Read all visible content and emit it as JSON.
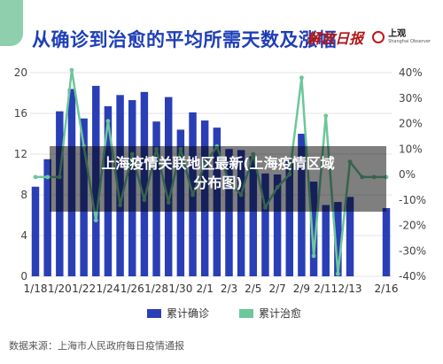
{
  "header": {
    "title": "从确诊到治愈的平均所需天数及涨幅",
    "logo_left": "解放日报",
    "logo_right": "上观",
    "logo_right_sub": "Shanghai Observer"
  },
  "overlay": {
    "line1": "上海疫情关联地区最新(上海疫情区域",
    "line2": "分布图)"
  },
  "source": "数据来源：上海市人民政府每日疫情通报",
  "colors": {
    "bar": "#2a3fb5",
    "line": "#6cc79a",
    "title": "#1f3fb8",
    "grid": "#e3e3e3"
  },
  "chart_data": {
    "type": "bar",
    "x_tick_labels": [
      "1/18",
      "1/20",
      "1/22",
      "1/24",
      "1/26",
      "1/28",
      "1/30",
      "2/1",
      "2/3",
      "2/5",
      "2/7",
      "2/9",
      "2/11",
      "2/13",
      "2/16"
    ],
    "dates": [
      "1/18",
      "1/19",
      "1/20",
      "1/21",
      "1/22",
      "1/23",
      "1/24",
      "1/25",
      "1/26",
      "1/27",
      "1/28",
      "1/29",
      "1/30",
      "1/31",
      "2/1",
      "2/2",
      "2/3",
      "2/4",
      "2/5",
      "2/6",
      "2/7",
      "2/8",
      "2/9",
      "2/10",
      "2/11",
      "2/12",
      "2/13",
      "2/14",
      "2/15",
      "2/16"
    ],
    "y_left": {
      "min": 0,
      "max": 20,
      "ticks": [
        0,
        4,
        8,
        12,
        16,
        20
      ]
    },
    "y_right": {
      "min": -40,
      "max": 40,
      "ticks": [
        "40%",
        "30%",
        "20%",
        "10%",
        "0%",
        "-10%",
        "-20%",
        "-30%",
        "-40%"
      ]
    },
    "grid": true,
    "legend_position": "bottom",
    "series": [
      {
        "name": "累计确诊",
        "type": "bar",
        "axis": "left",
        "values": [
          8.8,
          11.5,
          16.2,
          18.4,
          15.5,
          18.7,
          16.7,
          17.8,
          17.3,
          18.1,
          15.2,
          17.6,
          14.4,
          16.1,
          15.3,
          14.6,
          12.5,
          12.4,
          11.8,
          10.1,
          10.0,
          11.5,
          14.0,
          9.3,
          7.0,
          7.3,
          7.8,
          null,
          null,
          6.7
        ]
      },
      {
        "name": "累计治愈",
        "type": "line",
        "axis": "right",
        "values": [
          -1,
          -1,
          -1,
          41,
          11,
          -18,
          21,
          -12,
          8,
          -10,
          10,
          -11,
          10,
          -8,
          4,
          11,
          -3,
          -8,
          8,
          -13,
          -5,
          0,
          38,
          -32,
          23,
          -39,
          5,
          -1,
          -1,
          -1
        ]
      }
    ]
  }
}
